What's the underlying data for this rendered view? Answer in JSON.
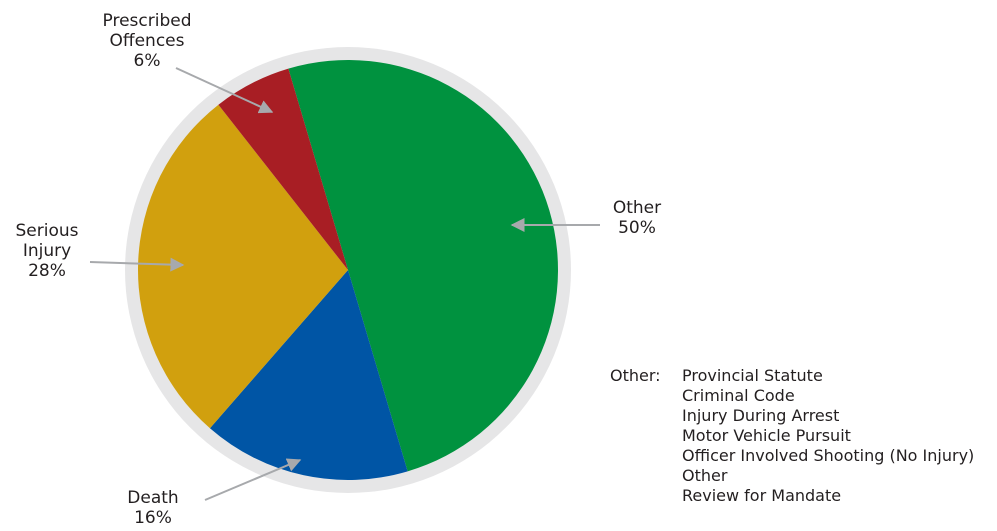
{
  "chart_data": {
    "type": "pie",
    "slices": [
      {
        "label_lines": [
          "Other"
        ],
        "percent_text": "50%",
        "value": 50,
        "color": "#00923f"
      },
      {
        "label_lines": [
          "Death"
        ],
        "percent_text": "16%",
        "value": 16,
        "color": "#0055a5"
      },
      {
        "label_lines": [
          "Serious",
          "Injury"
        ],
        "percent_text": "28%",
        "value": 28,
        "color": "#d1a00e"
      },
      {
        "label_lines": [
          "Prescribed",
          "Offences"
        ],
        "percent_text": "6%",
        "value": 6,
        "color": "#a81e24"
      }
    ],
    "rim_color": "#e6e6e7",
    "arrow_color": "#a7a9ac"
  },
  "note": {
    "key": "Other:",
    "items": [
      "Provincial Statute",
      "Criminal Code",
      "Injury During Arrest",
      "Motor Vehicle Pursuit",
      "Officer Involved Shooting (No Injury)",
      "Other",
      "Review for Mandate"
    ]
  }
}
